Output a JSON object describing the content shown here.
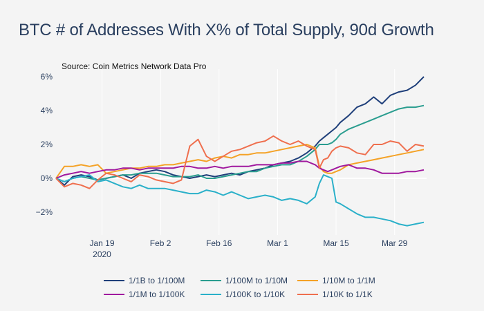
{
  "chart_data": {
    "type": "line",
    "title": "BTC # of Addresses With X% of Total Supply, 90d Growth",
    "subtitle": "Source: Coin Metrics Network Data Pro",
    "xlabel": "",
    "ylabel": "",
    "ylim": [
      -3.3,
      6.4
    ],
    "yticks": [
      {
        "value": 6,
        "label": "6%"
      },
      {
        "value": 4,
        "label": "4%"
      },
      {
        "value": 2,
        "label": "2%"
      },
      {
        "value": 0,
        "label": "0%"
      },
      {
        "value": -2,
        "label": "-2%"
      }
    ],
    "x_start_day": 0,
    "x_end_day": 88,
    "x_note": "day 0 = 2020-01-08",
    "xticks": [
      {
        "day": 11,
        "label": "Jan 19",
        "sublabel": "2020"
      },
      {
        "day": 25,
        "label": "Feb 2",
        "sublabel": ""
      },
      {
        "day": 39,
        "label": "Feb 16",
        "sublabel": ""
      },
      {
        "day": 53,
        "label": "Mar 1",
        "sublabel": ""
      },
      {
        "day": 67,
        "label": "Mar 15",
        "sublabel": ""
      },
      {
        "day": 81,
        "label": "Mar 29",
        "sublabel": ""
      }
    ],
    "grid": {
      "x": true,
      "y": false,
      "zeroline": true
    },
    "legend_position": "bottom",
    "x": [
      0,
      2,
      4,
      6,
      8,
      10,
      12,
      14,
      16,
      18,
      20,
      22,
      24,
      26,
      28,
      30,
      32,
      34,
      36,
      38,
      40,
      42,
      44,
      46,
      48,
      50,
      52,
      54,
      56,
      58,
      60,
      62,
      63,
      64,
      65,
      66,
      67,
      68,
      70,
      72,
      74,
      76,
      78,
      80,
      82,
      84,
      86,
      88
    ],
    "series": [
      {
        "name": "1/1B to 1/100M",
        "color": "#1f3f7a",
        "values": [
          0,
          -0.4,
          0.1,
          0.2,
          0.1,
          -0.1,
          0.0,
          0.1,
          0.2,
          0.0,
          0.3,
          0.4,
          0.5,
          0.4,
          0.2,
          0.1,
          0.0,
          0.1,
          0.2,
          0.1,
          0.2,
          0.3,
          0.2,
          0.4,
          0.5,
          0.6,
          0.8,
          0.9,
          1.0,
          1.2,
          1.5,
          1.9,
          2.2,
          2.4,
          2.6,
          2.8,
          3.0,
          3.3,
          3.7,
          4.2,
          4.4,
          4.8,
          4.4,
          4.9,
          5.1,
          5.2,
          5.5,
          6.0
        ]
      },
      {
        "name": "1/100M to 1/10M",
        "color": "#2a9d8f",
        "values": [
          0,
          -0.2,
          0.0,
          0.1,
          0.0,
          -0.1,
          0.0,
          0.1,
          0.2,
          0.2,
          0.3,
          0.3,
          0.3,
          0.2,
          0.1,
          0.1,
          0.1,
          0.2,
          0.0,
          0.0,
          0.1,
          0.2,
          0.3,
          0.4,
          0.4,
          0.6,
          0.7,
          0.8,
          0.8,
          1.0,
          1.3,
          1.7,
          2.0,
          2.0,
          2.0,
          2.1,
          2.3,
          2.6,
          2.9,
          3.1,
          3.3,
          3.5,
          3.7,
          3.9,
          4.1,
          4.2,
          4.2,
          4.3
        ]
      },
      {
        "name": "1/10M to 1/1M",
        "color": "#f4a226",
        "values": [
          0,
          0.7,
          0.7,
          0.8,
          0.7,
          0.8,
          0.3,
          0.4,
          0.5,
          0.6,
          0.6,
          0.7,
          0.7,
          0.8,
          0.8,
          0.9,
          1.0,
          1.1,
          1.0,
          1.2,
          1.3,
          1.2,
          1.4,
          1.4,
          1.5,
          1.5,
          1.6,
          1.7,
          1.8,
          1.9,
          2.0,
          1.8,
          0.7,
          0.4,
          0.3,
          0.3,
          0.4,
          0.5,
          0.8,
          0.9,
          1.0,
          1.1,
          1.2,
          1.3,
          1.4,
          1.5,
          1.6,
          1.7
        ]
      },
      {
        "name": "1/1M to 1/100K",
        "color": "#a0189e",
        "values": [
          0,
          0.2,
          0.3,
          0.4,
          0.3,
          0.4,
          0.5,
          0.5,
          0.6,
          0.6,
          0.5,
          0.6,
          0.6,
          0.6,
          0.6,
          0.7,
          0.7,
          0.6,
          0.6,
          0.7,
          0.6,
          0.7,
          0.7,
          0.7,
          0.8,
          0.8,
          0.8,
          0.9,
          0.9,
          1.0,
          1.0,
          0.8,
          0.6,
          0.5,
          0.4,
          0.5,
          0.6,
          0.7,
          0.8,
          0.6,
          0.6,
          0.5,
          0.3,
          0.3,
          0.3,
          0.4,
          0.4,
          0.5
        ]
      },
      {
        "name": "1/100K to 1/10K",
        "color": "#2ab0c9",
        "values": [
          0,
          -0.2,
          0.0,
          0.1,
          0.2,
          -0.2,
          -0.1,
          -0.3,
          -0.5,
          -0.6,
          -0.4,
          -0.6,
          -0.6,
          -0.6,
          -0.7,
          -0.8,
          -0.9,
          -0.9,
          -0.7,
          -0.8,
          -1.0,
          -0.8,
          -1.0,
          -1.2,
          -1.1,
          -1.0,
          -1.1,
          -1.3,
          -1.2,
          -1.3,
          -1.5,
          -1.1,
          -0.3,
          0.2,
          0.1,
          0.0,
          -1.4,
          -1.5,
          -1.8,
          -2.1,
          -2.3,
          -2.3,
          -2.4,
          -2.5,
          -2.7,
          -2.8,
          -2.7,
          -2.6
        ]
      },
      {
        "name": "1/10K to 1/1K",
        "color": "#ef6f4e",
        "values": [
          0,
          -0.5,
          -0.3,
          -0.4,
          -0.6,
          -0.1,
          0.3,
          0.2,
          0.0,
          -0.2,
          0.2,
          0.1,
          -0.1,
          -0.2,
          -0.3,
          -0.1,
          1.9,
          2.3,
          1.3,
          1.0,
          1.3,
          1.6,
          1.7,
          1.9,
          2.1,
          2.2,
          2.5,
          2.2,
          2.0,
          2.2,
          1.9,
          1.7,
          0.6,
          1.1,
          1.2,
          1.6,
          1.8,
          1.9,
          1.8,
          1.5,
          1.4,
          2.0,
          2.0,
          2.2,
          2.1,
          1.6,
          2.0,
          1.9
        ]
      }
    ]
  }
}
